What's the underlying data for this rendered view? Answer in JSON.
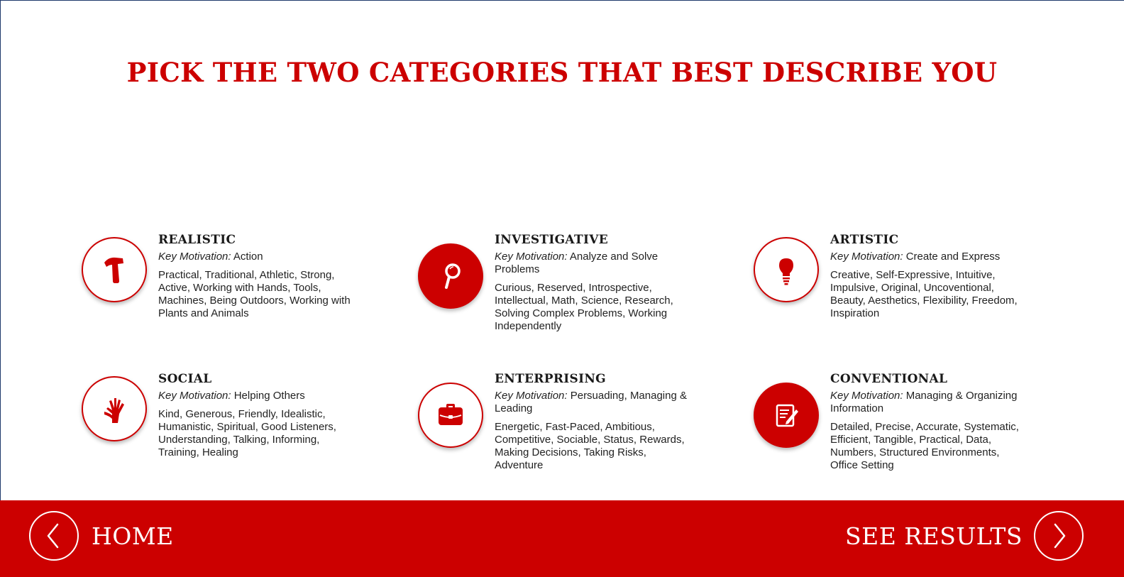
{
  "page_title": "PICK THE TWO CATEGORIES THAT BEST DESCRIBE YOU",
  "motivation_label": "Key Motivation:",
  "colors": {
    "accent": "#cc0000",
    "background": "#ffffff",
    "text": "#222222"
  },
  "categories": [
    {
      "title": "REALISTIC",
      "icon": "hammer-icon",
      "motivation": "Action",
      "traits": "Practical, Traditional, Athletic, Strong, Active, Working with Hands, Tools, Machines, Being Outdoors, Working with Plants and Animals"
    },
    {
      "title": "INVESTIGATIVE",
      "icon": "magnifier-icon",
      "motivation": "Analyze and Solve Problems",
      "traits": "Curious, Reserved, Introspective, Intellectual, Math, Science, Research, Solving Complex Problems, Working Independently"
    },
    {
      "title": "ARTISTIC",
      "icon": "lightbulb-icon",
      "motivation": "Create and Express",
      "traits": "Creative, Self-Expressive, Intuitive, Impulsive, Original, Uncoventional, Beauty, Aesthetics, Flexibility, Freedom, Inspiration"
    },
    {
      "title": "SOCIAL",
      "icon": "helping-hands-icon",
      "motivation": "Helping Others",
      "traits": "Kind, Generous, Friendly, Idealistic, Humanistic, Spiritual, Good Listeners, Understanding, Talking, Informing, Training, Healing"
    },
    {
      "title": "ENTERPRISING",
      "icon": "briefcase-icon",
      "motivation": "Persuading, Managing & Leading",
      "traits": "Energetic, Fast-Paced, Ambitious, Competitive, Sociable, Status, Rewards, Making Decisions, Taking Risks, Adventure"
    },
    {
      "title": "CONVENTIONAL",
      "icon": "document-pen-icon",
      "motivation": "Managing & Organizing Information",
      "traits": "Detailed, Precise, Accurate, Systematic, Efficient, Tangible, Practical, Data, Numbers, Structured Environments, Office Setting"
    }
  ],
  "footer": {
    "home_label": "HOME",
    "home_icon": "chevron-left-icon",
    "results_label": "SEE RESULTS",
    "results_icon": "chevron-right-icon"
  }
}
